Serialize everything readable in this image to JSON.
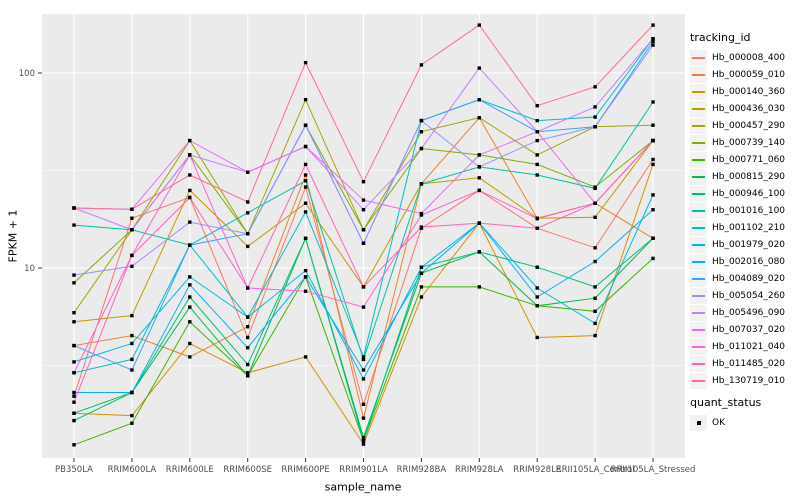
{
  "figure": {
    "background": "#FFFFFF",
    "panel_background": "#EBEBEB",
    "gridline_color": "#FFFFFF",
    "tick_label_color": "#4D4D4D",
    "tick_mark_color": "#333333",
    "axis_title_color": "#000000",
    "point_color": "#000000",
    "legend_key_background": "#F2F2F2"
  },
  "legend": {
    "tracking_title": "tracking_id",
    "quant_title": "quant_status",
    "quant_value": "OK"
  },
  "chart_data": {
    "type": "line",
    "title": "",
    "xlabel": "sample_name",
    "ylabel": "FPKM + 1",
    "y_scale": "log10",
    "grid": true,
    "legend_position": "right",
    "y_ticks": [
      10,
      100
    ],
    "y_minor_ticks": [
      3.162,
      31.62
    ],
    "ylim": [
      1.05,
      200
    ],
    "categories": [
      "PB350LA",
      "RRIM600LA",
      "RRIM600LE",
      "RRIM600SE",
      "RRIM600PE",
      "RRIM901LA",
      "RRIM928BA",
      "RRIM928LA",
      "RRIM928LE",
      "RRII105LA_Control",
      "RRII105LA_Stressed"
    ],
    "series": [
      {
        "name": "Hb_000008_400",
        "color": "#F8766D",
        "values": [
          2.2,
          18.0,
          23.0,
          4.4,
          26.0,
          2.0,
          16.0,
          25.0,
          16.0,
          12.7,
          36.0
        ]
      },
      {
        "name": "Hb_000059_010",
        "color": "#EA8331",
        "values": [
          4.0,
          4.5,
          3.5,
          5.0,
          30.0,
          1.7,
          27.0,
          59.0,
          18.0,
          21.5,
          14.2
        ]
      },
      {
        "name": "Hb_000140_360",
        "color": "#D89000",
        "values": [
          1.8,
          1.75,
          4.1,
          2.9,
          3.5,
          1.25,
          7.1,
          17.0,
          4.4,
          4.5,
          34.0
        ]
      },
      {
        "name": "Hb_000436_030",
        "color": "#C09B00",
        "values": [
          5.3,
          5.7,
          25.0,
          12.9,
          21.5,
          8.0,
          27.0,
          29.0,
          18.0,
          18.2,
          45.0
        ]
      },
      {
        "name": "Hb_000457_290",
        "color": "#A3A500",
        "values": [
          5.9,
          15.7,
          45.0,
          15.0,
          73.0,
          15.7,
          50.0,
          59.0,
          38.0,
          53.0,
          54.0
        ]
      },
      {
        "name": "Hb_000739_140",
        "color": "#7CAE00",
        "values": [
          8.4,
          15.7,
          38.0,
          15.0,
          54.0,
          15.7,
          41.0,
          38.0,
          34.0,
          26.0,
          45.0
        ]
      },
      {
        "name": "Hb_000771_060",
        "color": "#39B600",
        "values": [
          1.24,
          1.6,
          5.3,
          2.8,
          9.0,
          1.3,
          8.0,
          8.0,
          6.4,
          6.0,
          11.2
        ]
      },
      {
        "name": "Hb_000815_290",
        "color": "#00BB4E",
        "values": [
          1.8,
          2.3,
          6.3,
          2.8,
          14.2,
          1.35,
          9.4,
          12.1,
          6.4,
          7.0,
          14.2
        ]
      },
      {
        "name": "Hb_000946_100",
        "color": "#00BF7D",
        "values": [
          1.65,
          2.3,
          7.1,
          3.2,
          14.2,
          1.3,
          10.1,
          12.1,
          10.1,
          8.0,
          14.2
        ]
      },
      {
        "name": "Hb_001016_100",
        "color": "#00C1A3",
        "values": [
          16.6,
          15.7,
          13.1,
          19.2,
          28.0,
          3.4,
          27.0,
          33.0,
          30.0,
          25.6,
          71.0
        ]
      },
      {
        "name": "Hb_001102_210",
        "color": "#00BFC4",
        "values": [
          2.9,
          3.4,
          13.1,
          5.6,
          19.4,
          3.5,
          57.0,
          73.0,
          57.0,
          59.5,
          150.0
        ]
      },
      {
        "name": "Hb_001979_020",
        "color": "#00BAE0",
        "values": [
          3.3,
          4.1,
          9.0,
          5.6,
          9.7,
          2.7,
          10.1,
          17.0,
          7.9,
          5.2,
          23.7
        ]
      },
      {
        "name": "Hb_002016_080",
        "color": "#00B0F6",
        "values": [
          2.3,
          2.3,
          8.2,
          3.9,
          9.0,
          3.0,
          9.4,
          17.0,
          7.1,
          10.8,
          19.9
        ]
      },
      {
        "name": "Hb_004089_020",
        "color": "#35A2FF",
        "values": [
          4.0,
          3.0,
          13.1,
          15.0,
          54.0,
          13.4,
          57.0,
          73.0,
          50.0,
          53.0,
          145.0
        ]
      },
      {
        "name": "Hb_005054_260",
        "color": "#9590FF",
        "values": [
          9.2,
          10.2,
          17.2,
          15.0,
          54.0,
          13.4,
          57.0,
          33.0,
          45.0,
          53.0,
          139.0
        ]
      },
      {
        "name": "Hb_005496_090",
        "color": "#C77CFF",
        "values": [
          20.3,
          15.7,
          38.0,
          31.0,
          42.0,
          19.9,
          41.0,
          106.0,
          50.0,
          67.0,
          150.0
        ]
      },
      {
        "name": "Hb_007037_020",
        "color": "#E76BF3",
        "values": [
          20.3,
          20.0,
          45.0,
          31.0,
          42.0,
          22.3,
          19.0,
          38.0,
          50.0,
          21.5,
          45.0
        ]
      },
      {
        "name": "Hb_011021_040",
        "color": "#FA62DB",
        "values": [
          2.9,
          11.6,
          38.0,
          7.9,
          7.6,
          6.3,
          18.7,
          25.0,
          17.9,
          21.5,
          45.0
        ]
      },
      {
        "name": "Hb_011485_020",
        "color": "#FF62BC",
        "values": [
          2.05,
          11.6,
          23.0,
          7.9,
          34.0,
          8.0,
          16.2,
          17.0,
          16.0,
          21.5,
          45.0
        ]
      },
      {
        "name": "Hb_130719_010",
        "color": "#FF6A98",
        "values": [
          20.3,
          20.0,
          30.0,
          21.8,
          113.0,
          27.7,
          110.0,
          176.0,
          68.0,
          85.0,
          176.0
        ]
      }
    ]
  }
}
